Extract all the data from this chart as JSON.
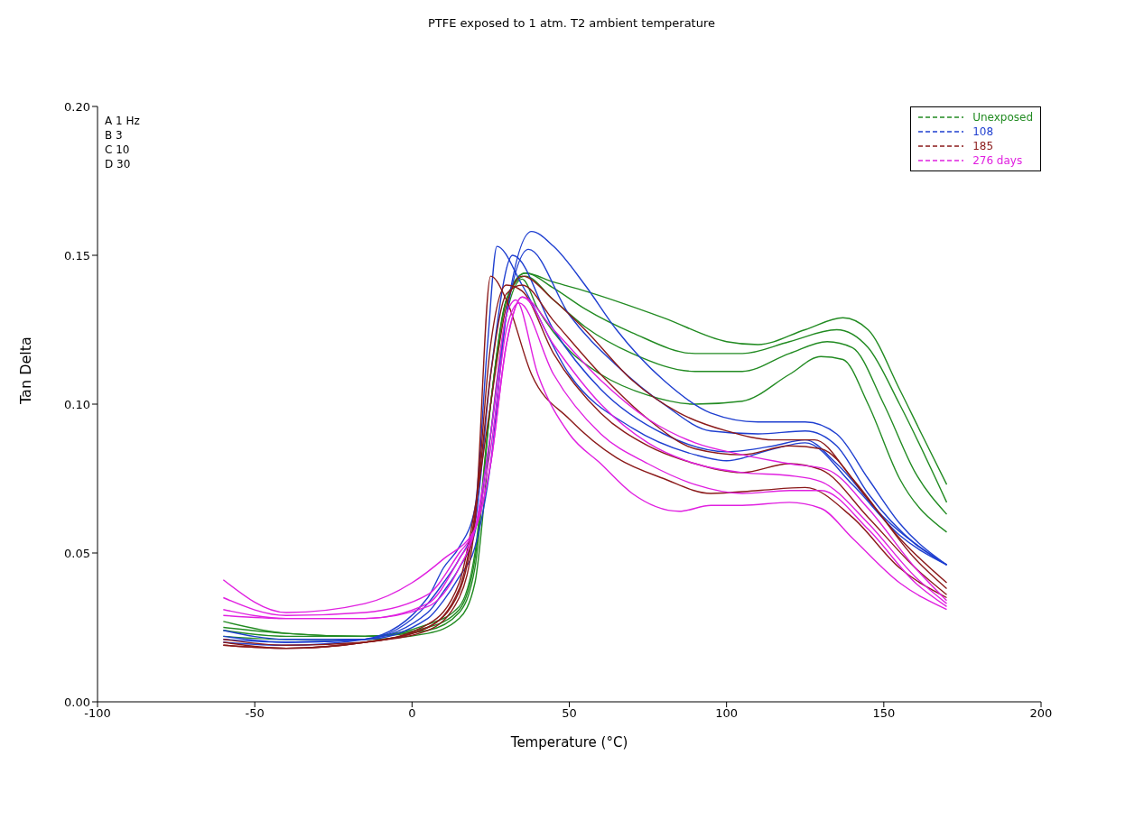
{
  "chart_data": {
    "type": "line",
    "title": "PTFE exposed to 1 atm. T2 ambient temperature",
    "xlabel": "Temperature (°C)",
    "ylabel": "Tan Delta",
    "xlim": [
      -100,
      200
    ],
    "xticks": [
      -100,
      -50,
      0,
      50,
      100,
      150,
      200
    ],
    "ylim": [
      0,
      0.2
    ],
    "yticks": [
      {
        "value": 0,
        "label": "0.00"
      },
      {
        "value": 0.05,
        "label": "0.05"
      },
      {
        "value": 0.1,
        "label": "0.10"
      },
      {
        "value": 0.15,
        "label": "0.15"
      },
      {
        "value": 0.2,
        "label": "0.20"
      }
    ],
    "grid": false,
    "legend": "top right",
    "line_style": "solid",
    "annotations": [
      "A 1 Hz",
      "B 3",
      "C 10",
      "D 30"
    ],
    "series": [
      {
        "name": "Unexposed",
        "color": "#228b22",
        "x": [
          -60,
          -40,
          -15,
          5,
          15,
          20,
          25,
          30,
          35,
          40,
          50,
          60,
          75,
          90,
          105,
          120,
          130,
          137,
          145,
          155,
          170
        ],
        "values": [
          0.022,
          0.021,
          0.021,
          0.023,
          0.028,
          0.04,
          0.09,
          0.13,
          0.142,
          0.132,
          0.118,
          0.11,
          0.103,
          0.1,
          0.101,
          0.11,
          0.116,
          0.115,
          0.1,
          0.075,
          0.057
        ]
      },
      {
        "color": "#228b22",
        "x": [
          -60,
          -40,
          -15,
          5,
          15,
          20,
          25,
          30,
          36,
          45,
          55,
          70,
          90,
          105,
          120,
          132,
          140,
          150,
          160,
          170
        ],
        "values": [
          0.024,
          0.022,
          0.022,
          0.024,
          0.03,
          0.045,
          0.1,
          0.135,
          0.143,
          0.135,
          0.126,
          0.117,
          0.111,
          0.111,
          0.117,
          0.121,
          0.119,
          0.1,
          0.077,
          0.063
        ]
      },
      {
        "color": "#228b22",
        "x": [
          -60,
          -40,
          -15,
          5,
          15,
          20,
          25,
          30,
          36,
          45,
          55,
          70,
          90,
          105,
          120,
          135,
          145,
          155,
          170
        ],
        "values": [
          0.025,
          0.023,
          0.022,
          0.025,
          0.031,
          0.048,
          0.1,
          0.135,
          0.144,
          0.139,
          0.132,
          0.124,
          0.117,
          0.117,
          0.121,
          0.125,
          0.119,
          0.1,
          0.067
        ]
      },
      {
        "color": "#228b22",
        "x": [
          -60,
          -40,
          -15,
          5,
          15,
          20,
          25,
          30,
          36,
          45,
          55,
          80,
          100,
          110,
          125,
          137,
          145,
          155,
          162,
          170
        ],
        "values": [
          0.027,
          0.023,
          0.022,
          0.026,
          0.032,
          0.05,
          0.1,
          0.135,
          0.144,
          0.141,
          0.138,
          0.129,
          0.121,
          0.12,
          0.125,
          0.129,
          0.125,
          0.105,
          0.09,
          0.073
        ]
      },
      {
        "name": "108",
        "color": "#1f3fd0",
        "x": [
          -60,
          -40,
          -15,
          5,
          10,
          15,
          20,
          24,
          27,
          35,
          50,
          70,
          90,
          100,
          115,
          125,
          140,
          155,
          170
        ],
        "values": [
          0.02,
          0.019,
          0.021,
          0.035,
          0.045,
          0.052,
          0.065,
          0.12,
          0.153,
          0.14,
          0.11,
          0.092,
          0.083,
          0.081,
          0.085,
          0.087,
          0.073,
          0.056,
          0.046
        ]
      },
      {
        "color": "#1f3fd0",
        "x": [
          -60,
          -40,
          -15,
          5,
          10,
          15,
          20,
          25,
          32,
          45,
          60,
          80,
          100,
          115,
          125,
          135,
          150,
          170
        ],
        "values": [
          0.021,
          0.02,
          0.021,
          0.033,
          0.04,
          0.048,
          0.06,
          0.11,
          0.15,
          0.125,
          0.105,
          0.09,
          0.084,
          0.086,
          0.088,
          0.08,
          0.062,
          0.046
        ]
      },
      {
        "color": "#1f3fd0",
        "x": [
          -60,
          -40,
          -15,
          5,
          10,
          15,
          20,
          25,
          30,
          37,
          50,
          65,
          80,
          95,
          110,
          125,
          135,
          145,
          160,
          170
        ],
        "values": [
          0.022,
          0.02,
          0.021,
          0.03,
          0.037,
          0.045,
          0.057,
          0.09,
          0.13,
          0.152,
          0.13,
          0.113,
          0.1,
          0.091,
          0.09,
          0.091,
          0.086,
          0.07,
          0.053,
          0.046
        ]
      },
      {
        "color": "#1f3fd0",
        "x": [
          -60,
          -40,
          -15,
          5,
          10,
          15,
          20,
          25,
          30,
          38,
          45,
          55,
          65,
          80,
          95,
          110,
          125,
          135,
          145,
          155,
          170
        ],
        "values": [
          0.024,
          0.021,
          0.021,
          0.028,
          0.034,
          0.042,
          0.052,
          0.08,
          0.13,
          0.158,
          0.153,
          0.14,
          0.125,
          0.108,
          0.097,
          0.094,
          0.094,
          0.09,
          0.075,
          0.06,
          0.046
        ]
      },
      {
        "name": "185",
        "color": "#8b1a1a",
        "x": [
          -60,
          -40,
          -15,
          5,
          15,
          20,
          25,
          30,
          38,
          50,
          65,
          80,
          95,
          110,
          125,
          140,
          155,
          170
        ],
        "values": [
          0.019,
          0.018,
          0.02,
          0.024,
          0.035,
          0.06,
          0.143,
          0.135,
          0.11,
          0.095,
          0.082,
          0.075,
          0.07,
          0.071,
          0.072,
          0.062,
          0.045,
          0.035
        ]
      },
      {
        "color": "#8b1a1a",
        "x": [
          -60,
          -40,
          -15,
          5,
          15,
          20,
          25,
          30,
          35,
          45,
          60,
          75,
          90,
          105,
          120,
          130,
          145,
          160,
          170
        ],
        "values": [
          0.019,
          0.018,
          0.02,
          0.025,
          0.037,
          0.062,
          0.12,
          0.14,
          0.138,
          0.117,
          0.097,
          0.086,
          0.08,
          0.077,
          0.08,
          0.078,
          0.062,
          0.045,
          0.036
        ]
      },
      {
        "color": "#8b1a1a",
        "x": [
          -60,
          -40,
          -15,
          5,
          15,
          20,
          25,
          30,
          35,
          45,
          60,
          75,
          90,
          105,
          120,
          130,
          145,
          160,
          170
        ],
        "values": [
          0.02,
          0.018,
          0.02,
          0.025,
          0.038,
          0.063,
          0.11,
          0.137,
          0.14,
          0.128,
          0.11,
          0.095,
          0.085,
          0.083,
          0.086,
          0.085,
          0.068,
          0.048,
          0.038
        ]
      },
      {
        "color": "#8b1a1a",
        "x": [
          -60,
          -40,
          -15,
          5,
          15,
          20,
          25,
          30,
          35,
          45,
          55,
          70,
          85,
          100,
          115,
          128,
          140,
          155,
          170
        ],
        "values": [
          0.021,
          0.019,
          0.02,
          0.026,
          0.04,
          0.065,
          0.1,
          0.133,
          0.143,
          0.135,
          0.125,
          0.108,
          0.097,
          0.091,
          0.088,
          0.088,
          0.075,
          0.055,
          0.04
        ]
      },
      {
        "name": "276 days",
        "color": "#e020e0",
        "x": [
          -60,
          -40,
          -15,
          5,
          15,
          20,
          25,
          30,
          33,
          40,
          50,
          60,
          70,
          85,
          95,
          105,
          120,
          130,
          140,
          155,
          170
        ],
        "values": [
          0.029,
          0.028,
          0.028,
          0.032,
          0.045,
          0.058,
          0.09,
          0.13,
          0.135,
          0.11,
          0.09,
          0.08,
          0.07,
          0.064,
          0.066,
          0.066,
          0.067,
          0.065,
          0.055,
          0.04,
          0.031
        ]
      },
      {
        "color": "#e020e0",
        "x": [
          -60,
          -40,
          -15,
          5,
          15,
          20,
          25,
          30,
          34,
          45,
          60,
          75,
          90,
          105,
          120,
          130,
          145,
          160,
          170
        ],
        "values": [
          0.031,
          0.028,
          0.028,
          0.033,
          0.048,
          0.058,
          0.085,
          0.125,
          0.134,
          0.11,
          0.09,
          0.08,
          0.073,
          0.07,
          0.071,
          0.071,
          0.058,
          0.04,
          0.032
        ]
      },
      {
        "color": "#e020e0",
        "x": [
          -60,
          -40,
          -15,
          5,
          15,
          20,
          25,
          30,
          35,
          45,
          60,
          75,
          90,
          105,
          120,
          130,
          145,
          160,
          170
        ],
        "values": [
          0.035,
          0.029,
          0.03,
          0.036,
          0.05,
          0.058,
          0.08,
          0.12,
          0.136,
          0.12,
          0.1,
          0.087,
          0.08,
          0.077,
          0.076,
          0.074,
          0.06,
          0.042,
          0.033
        ]
      },
      {
        "color": "#e020e0",
        "x": [
          -60,
          -40,
          -15,
          0,
          10,
          20,
          25,
          30,
          35,
          45,
          60,
          75,
          90,
          105,
          120,
          132,
          145,
          160,
          170
        ],
        "values": [
          0.041,
          0.03,
          0.033,
          0.04,
          0.048,
          0.058,
          0.08,
          0.12,
          0.136,
          0.125,
          0.108,
          0.095,
          0.087,
          0.083,
          0.08,
          0.078,
          0.065,
          0.045,
          0.034
        ]
      }
    ]
  }
}
